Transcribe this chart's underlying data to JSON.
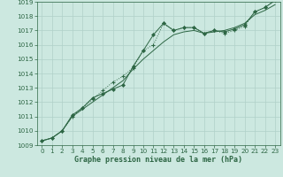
{
  "background_color": "#cce8e0",
  "grid_color": "#b0d0c8",
  "line_color": "#2d6644",
  "marker_color": "#2d6644",
  "xlabel": "Graphe pression niveau de la mer (hPa)",
  "xlim": [
    -0.5,
    23.5
  ],
  "ylim": [
    1009,
    1019
  ],
  "yticks": [
    1009,
    1010,
    1011,
    1012,
    1013,
    1014,
    1015,
    1016,
    1017,
    1018,
    1019
  ],
  "xticks": [
    0,
    1,
    2,
    3,
    4,
    5,
    6,
    7,
    8,
    9,
    10,
    11,
    12,
    13,
    14,
    15,
    16,
    17,
    18,
    19,
    20,
    21,
    22,
    23
  ],
  "series1_x": [
    0,
    1,
    2,
    3,
    4,
    5,
    6,
    7,
    8,
    9,
    10,
    11,
    12,
    13,
    14,
    15,
    16,
    17,
    18,
    19,
    20,
    21,
    22,
    23
  ],
  "series1_y": [
    1009.3,
    1009.5,
    1010.0,
    1011.0,
    1011.6,
    1012.2,
    1012.8,
    1013.4,
    1013.8,
    1014.4,
    1015.6,
    1016.0,
    1017.5,
    1017.0,
    1017.2,
    1017.2,
    1016.8,
    1017.0,
    1016.8,
    1017.0,
    1017.3,
    1018.3,
    1018.6,
    1019.1
  ],
  "series2_x": [
    0,
    1,
    2,
    3,
    4,
    5,
    6,
    7,
    8,
    9,
    10,
    11,
    12,
    13,
    14,
    15,
    16,
    17,
    18,
    19,
    20,
    21,
    22,
    23
  ],
  "series2_y": [
    1009.3,
    1009.5,
    1010.0,
    1011.1,
    1011.6,
    1012.3,
    1012.6,
    1012.9,
    1013.2,
    1014.5,
    1015.6,
    1016.7,
    1017.5,
    1017.0,
    1017.2,
    1017.2,
    1016.8,
    1017.0,
    1016.9,
    1017.1,
    1017.4,
    1018.3,
    1018.6,
    1019.1
  ],
  "series3_x": [
    0,
    1,
    2,
    3,
    4,
    5,
    6,
    7,
    8,
    9,
    10,
    11,
    12,
    13,
    14,
    15,
    16,
    17,
    18,
    19,
    20,
    21,
    22,
    23
  ],
  "series3_y": [
    1009.3,
    1009.5,
    1010.0,
    1011.0,
    1011.5,
    1012.0,
    1012.5,
    1013.0,
    1013.5,
    1014.3,
    1015.0,
    1015.6,
    1016.2,
    1016.7,
    1016.9,
    1017.0,
    1016.8,
    1016.9,
    1017.0,
    1017.2,
    1017.5,
    1018.1,
    1018.4,
    1018.8
  ]
}
